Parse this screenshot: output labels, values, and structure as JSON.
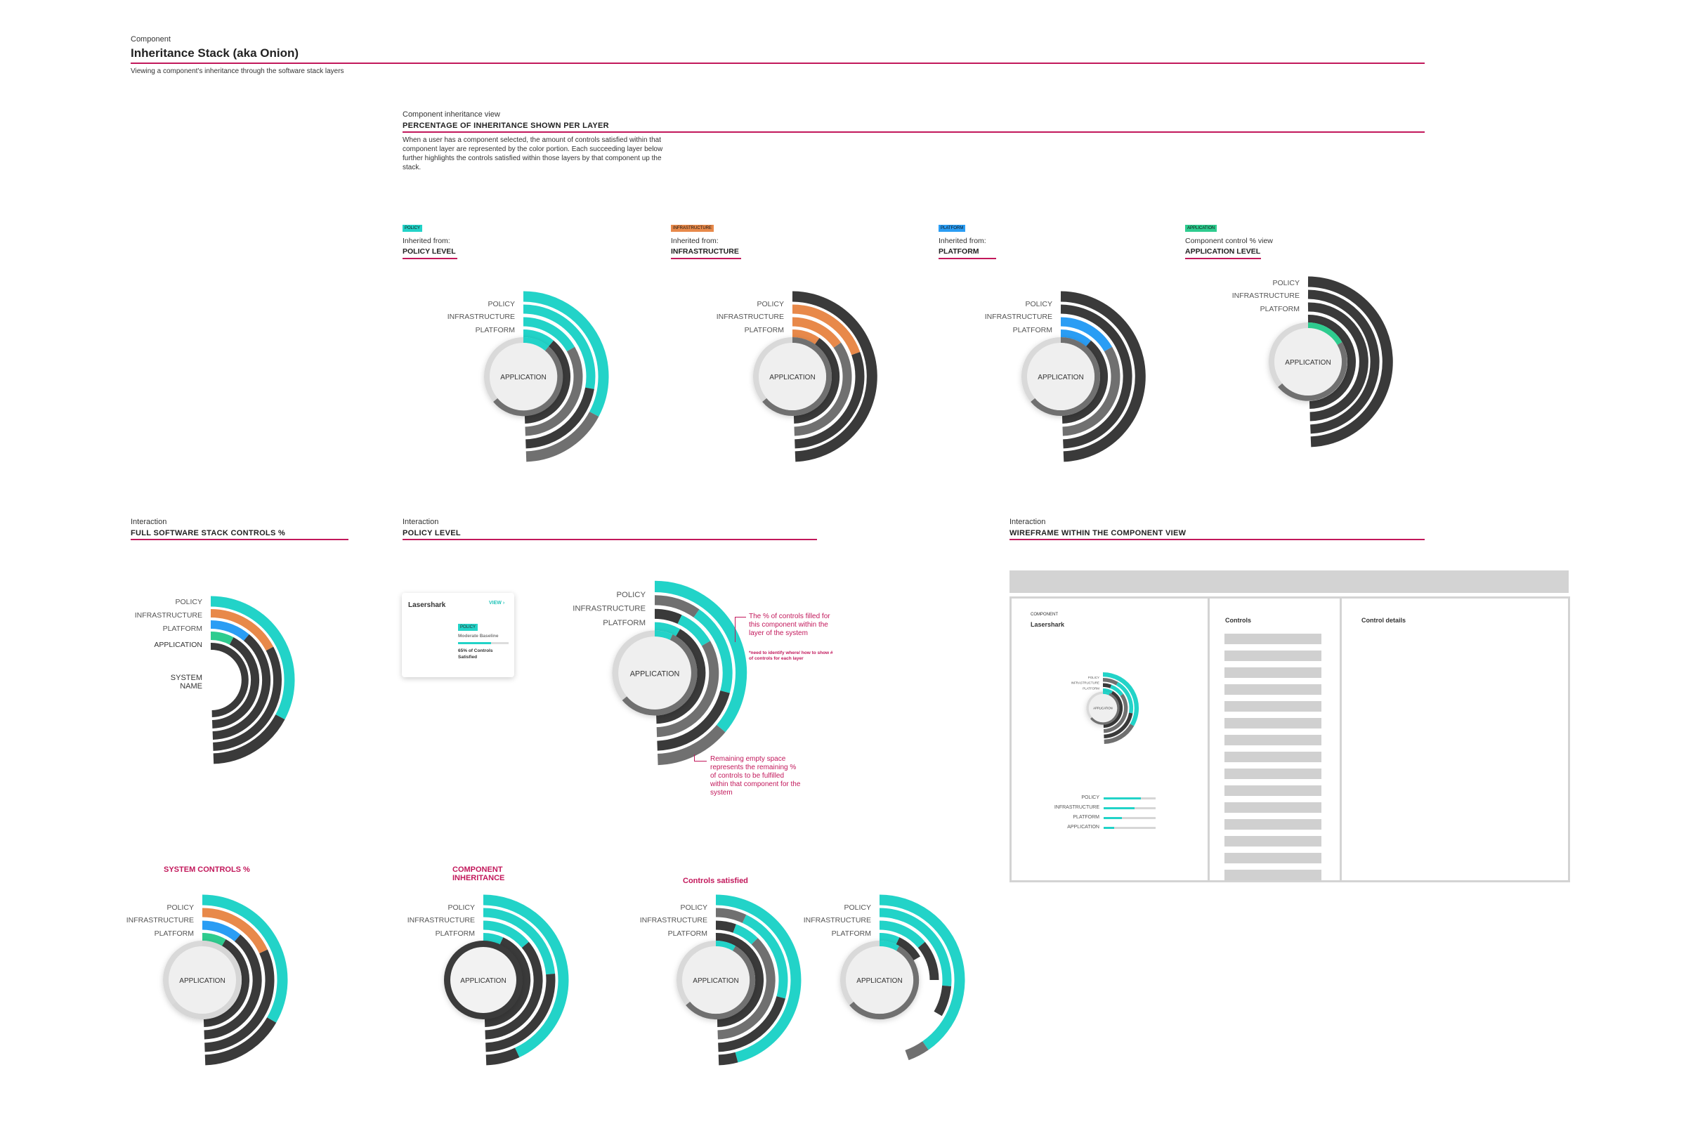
{
  "header": {
    "kicker": "Component",
    "title": "Inheritance Stack (aka Onion)",
    "subtitle": "Viewing a component's inheritance through the software stack layers"
  },
  "inheritance_view": {
    "kicker": "Component inheritance view",
    "title": "PERCENTAGE OF INHERITANCE SHOWN PER LAYER",
    "description": "When a user has a component selected, the amount of controls satisfied within that component layer are represented by the color portion. Each succeeding layer below further highlights the controls satisfied within those layers by that component up the stack."
  },
  "panels": [
    {
      "tag": "POLICY",
      "tag_color": "#22d3c8",
      "kicker": "Inherited from:",
      "title": "POLICY LEVEL"
    },
    {
      "tag": "INFRASTRUCTURE",
      "tag_color": "#e8894a",
      "kicker": "Inherited from:",
      "title": "INFRASTRUCTURE"
    },
    {
      "tag": "PLATFORM",
      "tag_color": "#2a9df4",
      "kicker": "Inherited from:",
      "title": "PLATFORM"
    },
    {
      "tag": "APPLICATION",
      "tag_color": "#2ecc8f",
      "kicker": "Component control % view",
      "title": "APPLICATION LEVEL"
    }
  ],
  "layer_labels": {
    "policy": "POLICY",
    "infrastructure": "INFRASTRUCTURE",
    "platform": "PLATFORM",
    "application": "APPLICATION"
  },
  "interactions": {
    "full_stack": {
      "kicker": "Interaction",
      "title": "FULL SOFTWARE STACK CONTROLS %",
      "center_label": "SYSTEM NAME"
    },
    "policy_level": {
      "kicker": "Interaction",
      "title": "POLICY LEVEL"
    },
    "wireframe": {
      "kicker": "Interaction",
      "title": "WIREFRAME WITHIN THE COMPONENT VIEW"
    }
  },
  "card": {
    "title": "Lasershark",
    "view_label": "VIEW",
    "tag": "POLICY",
    "baseline": "Moderate Baseline",
    "percent_text": "65% of Controls Satisfied"
  },
  "annotations": {
    "filled": "The % of controls filled for this component within the layer of the system",
    "note": "*need to identify where/ how to show # of controls for each layer",
    "empty": "Remaining empty space represents the remaining % of controls to be fulfilled within that component for the system"
  },
  "bottom_titles": {
    "system_controls": "SYSTEM CONTROLS %",
    "component_inheritance": "COMPONENT INHERITANCE",
    "controls_satisfied": "Controls satisfied"
  },
  "wireframe": {
    "component_kicker": "COMPONENT",
    "component_name": "Lasershark",
    "controls_title": "Controls",
    "details_title": "Control details",
    "bar_labels": [
      "POLICY",
      "INFRASTRUCTURE",
      "PLATFORM",
      "APPLICATION"
    ],
    "bar_values": [
      0.72,
      0.6,
      0.35,
      0.2
    ],
    "control_rows": 15
  },
  "colors": {
    "accent": "#c2185b",
    "policy": "#22d3c8",
    "infrastructure": "#e8894a",
    "platform": "#2a9df4",
    "application": "#2ecc8f",
    "dark": "#3a3a3a",
    "mid": "#707070",
    "light": "#d6d6d6"
  }
}
